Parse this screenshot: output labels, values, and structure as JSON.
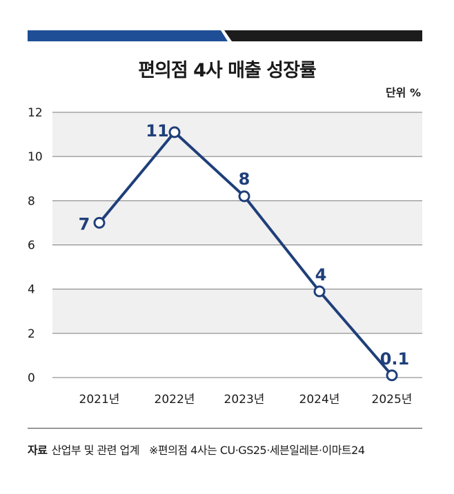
{
  "header": {
    "title": "편의점 4사 매출 성장률",
    "unit": "단위 %"
  },
  "colors": {
    "line": "#1f3f7a",
    "band_left": "#1f4e96",
    "band_right": "#1c1c1c",
    "stripe": "#f0f0f0",
    "grid": "#7a7a7a"
  },
  "chart_data": {
    "type": "line",
    "title": "편의점 4사 매출 성장률",
    "ylabel": "단위 %",
    "categories": [
      "2021년",
      "2022년",
      "2023년",
      "2024년",
      "2025년"
    ],
    "series": [
      {
        "name": "매출 성장률",
        "values": [
          7,
          11.1,
          8.2,
          3.9,
          0.1
        ]
      }
    ],
    "data_labels": [
      "7",
      "11",
      "8",
      "4",
      "0.1"
    ],
    "yticks": [
      0,
      2,
      4,
      6,
      8,
      10,
      12
    ],
    "ylim": [
      0,
      12
    ],
    "grid": true
  },
  "footer": {
    "source_label": "자료",
    "source_text": "산업부 및 관련 업계",
    "note": "※편의점 4사는 CU·GS25·세븐일레븐·이마트24"
  }
}
